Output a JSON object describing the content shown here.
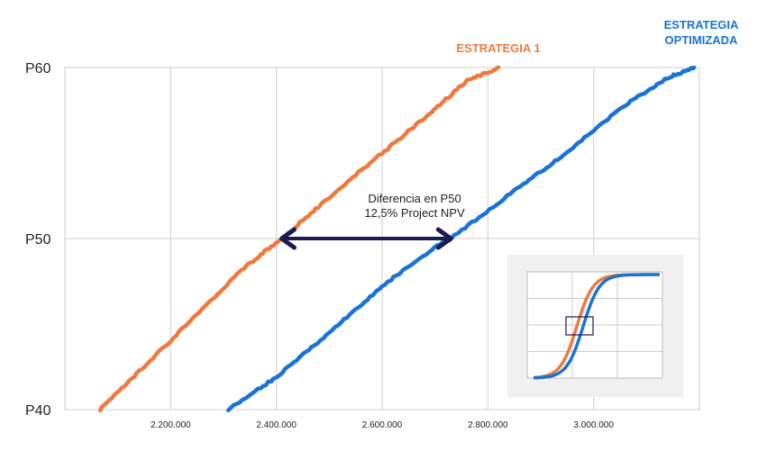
{
  "chart_data": {
    "type": "line",
    "y_ticks": [
      "P60",
      "P50",
      "P40"
    ],
    "x_ticks": [
      "2.200.000",
      "2.400.000",
      "2.600.000",
      "2.800.000",
      "3.000.000"
    ],
    "xlim": [
      2000000,
      3200000
    ],
    "ylim": [
      40,
      60
    ],
    "grid": true,
    "series": [
      {
        "name": "ESTRATEGIA 1",
        "color": "#f07a3e",
        "points": [
          [
            2066000,
            40
          ],
          [
            2150000,
            42.5
          ],
          [
            2250000,
            45.6
          ],
          [
            2340000,
            48.3
          ],
          [
            2410000,
            50
          ],
          [
            2500000,
            52.4
          ],
          [
            2600000,
            55.0
          ],
          [
            2690000,
            57.3
          ],
          [
            2760000,
            59.2
          ],
          [
            2820000,
            60
          ]
        ]
      },
      {
        "name": "ESTRATEGIA\nOPTIMIZADA",
        "color": "#1a73d9",
        "points": [
          [
            2310000,
            40
          ],
          [
            2400000,
            41.9
          ],
          [
            2500000,
            44.5
          ],
          [
            2600000,
            47.2
          ],
          [
            2700000,
            49.5
          ],
          [
            2730000,
            50
          ],
          [
            2850000,
            52.8
          ],
          [
            2950000,
            55.0
          ],
          [
            3050000,
            57.6
          ],
          [
            3140000,
            59.4
          ],
          [
            3190000,
            60
          ]
        ]
      }
    ],
    "annotation": {
      "line1": "Diferencia en P50",
      "line2": "12,5% Project NPV",
      "from_x": 2410000,
      "to_x": 2730000,
      "y": 50,
      "color": "#1c1a52"
    },
    "inset": {
      "type": "line",
      "description_series": [
        "ESTRATEGIA 1",
        "ESTRATEGIA OPTIMIZADA"
      ],
      "background": "#f0f0f0"
    }
  }
}
